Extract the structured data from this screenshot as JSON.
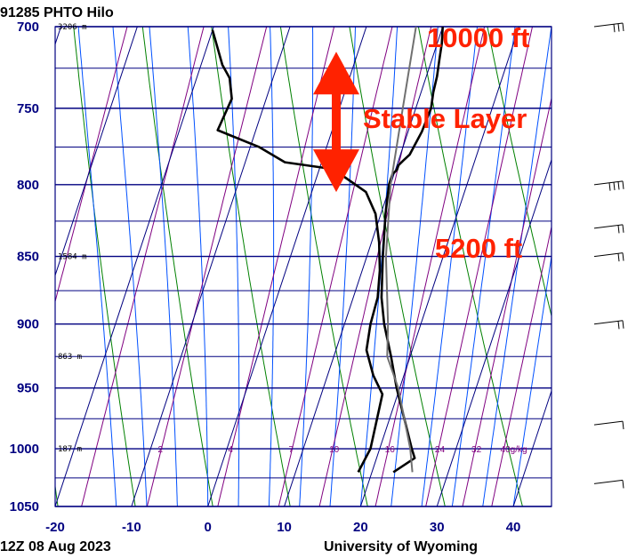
{
  "header": {
    "station": "91285 PHTO Hilo",
    "time": "12Z 08 Aug 2023",
    "source": "University of Wyoming"
  },
  "colors": {
    "grid": "#000080",
    "isotherm": "#000080",
    "dry_adiabat": "#008000",
    "moist_adiabat": "#0050ff",
    "mixing_ratio": "#800080",
    "temperature": "#000000",
    "dewpoint": "#000000",
    "parcel": "#707070",
    "annotation": "#ff2200",
    "wind": "#000000"
  },
  "annotations": {
    "top": "10000 ft",
    "middle": "Stable Layer",
    "bottom": "5200 ft",
    "arrow_top_pressure": 715,
    "arrow_bottom_pressure": 805,
    "arrow_temperature": 17.5
  },
  "chart_data": {
    "type": "line",
    "title": "91285 PHTO Hilo",
    "xlabel": "",
    "ylabel": "",
    "xlim": [
      -20,
      45
    ],
    "ylim": [
      1050,
      700
    ],
    "yscale": "log",
    "grid": true,
    "x_ticks": [
      -20,
      -10,
      0,
      10,
      20,
      30,
      40
    ],
    "y_ticks": [
      700,
      750,
      800,
      850,
      900,
      950,
      1000,
      1050
    ],
    "height_labels": [
      {
        "pressure": 700,
        "label": "3206 m"
      },
      {
        "pressure": 850,
        "label": "1584 m"
      },
      {
        "pressure": 925,
        "label": "863 m"
      },
      {
        "pressure": 1000,
        "label": "187 m"
      }
    ],
    "mixing_ratio_labels": [
      {
        "value": 2,
        "label": "2"
      },
      {
        "value": 4,
        "label": "4"
      },
      {
        "value": 7,
        "label": "7"
      },
      {
        "value": 10,
        "label": "10"
      },
      {
        "value": 16,
        "label": "16"
      },
      {
        "value": 24,
        "label": "24"
      },
      {
        "value": 32,
        "label": "32"
      },
      {
        "value": 40,
        "label": "40g/kg"
      }
    ],
    "series": [
      {
        "key": "temperature",
        "points": [
          [
            1020,
            22.8
          ],
          [
            1008,
            25.0
          ],
          [
            1000,
            24.2
          ],
          [
            950,
            19.6
          ],
          [
            925,
            17.5
          ],
          [
            900,
            15.2
          ],
          [
            880,
            13.7
          ],
          [
            850,
            12.1
          ],
          [
            820,
            10.6
          ],
          [
            800,
            9.8
          ],
          [
            793,
            9.8
          ],
          [
            790,
            10.2
          ],
          [
            787,
            10.2
          ],
          [
            784,
            10.6
          ],
          [
            780,
            11.2
          ],
          [
            775,
            11.4
          ],
          [
            765,
            11.8
          ],
          [
            750,
            12.0
          ],
          [
            740,
            11.6
          ],
          [
            730,
            11.4
          ],
          [
            720,
            11.0
          ],
          [
            710,
            10.6
          ],
          [
            700,
            10.0
          ]
        ]
      },
      {
        "key": "dewpoint",
        "points": [
          [
            1020,
            18.2
          ],
          [
            1000,
            18.8
          ],
          [
            955,
            18.0
          ],
          [
            940,
            16.0
          ],
          [
            920,
            14.0
          ],
          [
            900,
            13.4
          ],
          [
            880,
            13.2
          ],
          [
            860,
            12.3
          ],
          [
            840,
            11.0
          ],
          [
            820,
            9.3
          ],
          [
            805,
            7.1
          ],
          [
            795,
            3.7
          ],
          [
            792,
            2.5
          ],
          [
            789,
            1.0
          ],
          [
            785,
            -4.8
          ],
          [
            775,
            -8.8
          ],
          [
            764,
            -15.0
          ],
          [
            744,
            -14.5
          ],
          [
            731,
            -15.7
          ],
          [
            723,
            -17.2
          ],
          [
            702,
            -20.0
          ]
        ]
      },
      {
        "key": "parcel",
        "points": [
          [
            1020,
            25.3
          ],
          [
            1000,
            24.0
          ],
          [
            950,
            19.8
          ],
          [
            925,
            17.0
          ],
          [
            900,
            15.7
          ],
          [
            850,
            12.5
          ],
          [
            800,
            10.0
          ],
          [
            750,
            8.3
          ],
          [
            700,
            6.5
          ]
        ]
      }
    ],
    "wind_barbs": [
      {
        "pressure": 700,
        "barbs": 3
      },
      {
        "pressure": 800,
        "barbs": 4
      },
      {
        "pressure": 830,
        "barbs": 2
      },
      {
        "pressure": 850,
        "barbs": 2
      },
      {
        "pressure": 900,
        "barbs": 2
      },
      {
        "pressure": 980,
        "barbs": 1
      },
      {
        "pressure": 1030,
        "barbs": 1
      }
    ]
  }
}
